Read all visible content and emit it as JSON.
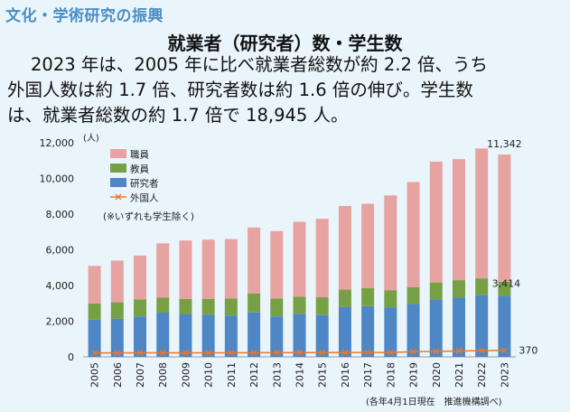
{
  "header": {
    "section_title": "文化・学術研究の振興",
    "main_title": "就業者（研究者）数・学生数"
  },
  "summary": {
    "line1": "2023 年は、2005 年に比べ就業者総数が約 2.2 倍、うち",
    "line2": "外国人数は約 1.7 倍、研究者数は約 1.6 倍の伸び。学生数",
    "line3": "は、就業者総数の約 1.7 倍で 18,945 人。"
  },
  "footnote": "(各年4月1日現在　推進機構調べ)",
  "colors": {
    "staff": "#e6a3a1",
    "faculty": "#77a045",
    "researcher": "#4f86c6",
    "foreign": "#e9792a",
    "background": "#eaf4fb"
  },
  "chart_data": {
    "type": "bar",
    "stacked": true,
    "unit_label": "(人)",
    "categories": [
      "2005",
      "2006",
      "2007",
      "2008",
      "2009",
      "2010",
      "2011",
      "2012",
      "2013",
      "2014",
      "2015",
      "2016",
      "2017",
      "2018",
      "2019",
      "2020",
      "2021",
      "2022",
      "2023"
    ],
    "series": [
      {
        "name": "研究者",
        "kind": "bar",
        "color": "#4f86c6",
        "values": [
          2080,
          2140,
          2270,
          2480,
          2380,
          2360,
          2320,
          2490,
          2270,
          2420,
          2340,
          2790,
          2850,
          2780,
          2960,
          3220,
          3320,
          3450,
          3414
        ]
      },
      {
        "name": "教員",
        "kind": "bar",
        "color": "#77a045",
        "values": [
          910,
          920,
          950,
          850,
          870,
          880,
          950,
          1070,
          1000,
          950,
          1000,
          980,
          1010,
          960,
          950,
          950,
          980,
          950,
          800
        ]
      },
      {
        "name": "職員",
        "kind": "bar",
        "color": "#e6a3a1",
        "values": [
          2110,
          2340,
          2460,
          3030,
          3270,
          3330,
          3330,
          3690,
          3780,
          4200,
          4400,
          4690,
          4720,
          5310,
          5890,
          6770,
          6780,
          7280,
          7128
        ]
      },
      {
        "name": "外国人",
        "kind": "line",
        "color": "#e9792a",
        "values": [
          220,
          220,
          225,
          230,
          230,
          230,
          230,
          235,
          235,
          240,
          240,
          245,
          250,
          250,
          290,
          310,
          330,
          350,
          370
        ]
      }
    ],
    "legend_order": [
      "職員",
      "教員",
      "研究者",
      "外国人"
    ],
    "legend_note": "(※いずれも学生除く)",
    "ylim": [
      0,
      12000
    ],
    "yticks": [
      0,
      2000,
      4000,
      6000,
      8000,
      10000,
      12000
    ],
    "ytick_labels": [
      "0",
      "2,000",
      "4,000",
      "6,000",
      "8,000",
      "10,000",
      "12,000"
    ],
    "annotations": [
      {
        "text": "11,342",
        "year": "2023",
        "target": "total"
      },
      {
        "text": "3,414",
        "year": "2023",
        "target": "researcher"
      },
      {
        "text": "370",
        "year": "2023",
        "target": "foreign"
      }
    ],
    "grid": false,
    "legend_position": "top-left"
  }
}
